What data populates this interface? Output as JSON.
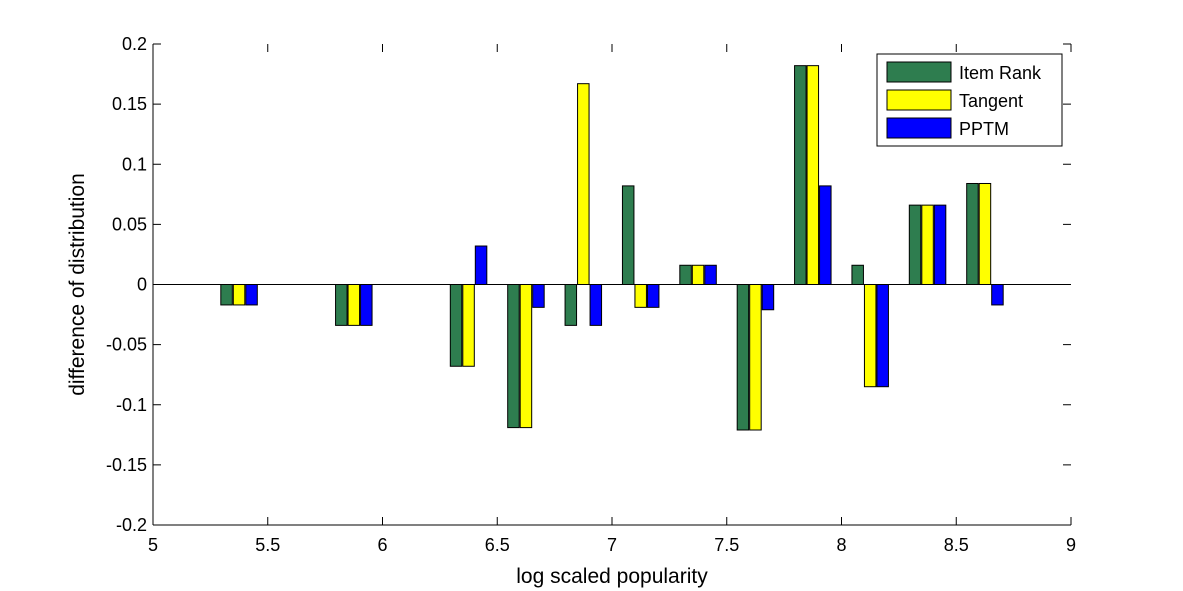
{
  "chart_data": {
    "type": "bar",
    "xlabel": "log scaled popularity",
    "ylabel": "difference of distribution",
    "xlim": [
      5,
      9
    ],
    "ylim": [
      -0.2,
      0.2
    ],
    "xticks": [
      5,
      5.5,
      6,
      6.5,
      7,
      7.5,
      8,
      8.5,
      9
    ],
    "xtick_labels": [
      "5",
      "5.5",
      "6",
      "6.5",
      "7",
      "7.5",
      "8",
      "8.5",
      "9"
    ],
    "yticks": [
      -0.2,
      -0.15,
      -0.1,
      -0.05,
      0,
      0.05,
      0.1,
      0.15,
      0.2
    ],
    "ytick_labels": [
      "-0.2",
      "-0.15",
      "-0.1",
      "-0.05",
      "0",
      "0.05",
      "0.1",
      "0.15",
      "0.2"
    ],
    "x": [
      5.375,
      5.875,
      6.375,
      6.625,
      6.875,
      7.125,
      7.375,
      7.625,
      7.875,
      8.125,
      8.375,
      8.625
    ],
    "series": [
      {
        "name": "Item Rank",
        "color": "#2e7d4f",
        "values": [
          -0.017,
          -0.034,
          -0.068,
          -0.119,
          -0.034,
          0.082,
          0.016,
          -0.121,
          0.182,
          0.016,
          0.066,
          0.084
        ]
      },
      {
        "name": "Tangent",
        "color": "#ffff00",
        "values": [
          -0.017,
          -0.034,
          -0.068,
          -0.119,
          0.167,
          -0.019,
          0.016,
          -0.121,
          0.182,
          -0.085,
          0.066,
          0.084
        ]
      },
      {
        "name": "PPTM",
        "color": "#0000ff",
        "values": [
          -0.017,
          -0.034,
          0.032,
          -0.019,
          -0.034,
          -0.019,
          0.016,
          -0.021,
          0.082,
          -0.085,
          0.066,
          -0.017
        ]
      }
    ],
    "legend_position": "top-right",
    "grid": false
  }
}
